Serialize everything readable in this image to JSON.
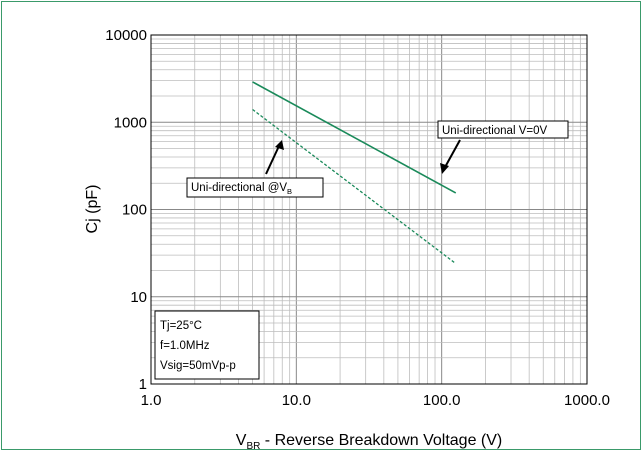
{
  "chart_data": {
    "type": "line",
    "x_scale": "log",
    "y_scale": "log",
    "xlim": [
      1.0,
      1000.0
    ],
    "ylim": [
      1,
      10000
    ],
    "x_ticks": [
      "1.0",
      "10.0",
      "100.0",
      "1000.0"
    ],
    "y_ticks": [
      "1",
      "10",
      "100",
      "1000",
      "10000"
    ],
    "xlabel": {
      "main": "V",
      "sub": "BR",
      "rest": " - Reverse Breakdown Voltage (V)"
    },
    "ylabel": "Cj (pF)",
    "grid": true,
    "series": [
      {
        "name": "Uni-directional V=0V",
        "style": "solid",
        "color": "#1a8a5a",
        "x": [
          5.0,
          125.0
        ],
        "y": [
          2900,
          155
        ]
      },
      {
        "name": "Uni-directional @VB",
        "style": "dashed",
        "color": "#1a8a5a",
        "x": [
          5.0,
          125.0
        ],
        "y": [
          1400,
          24
        ]
      }
    ],
    "annotations": [
      {
        "text": "Uni-directional V=0V"
      },
      {
        "main": "Uni-directional @V",
        "sub": "B"
      }
    ],
    "conditions": [
      "Tj=25°C",
      "f=1.0MHz",
      "Vsig=50mVp-p"
    ]
  }
}
